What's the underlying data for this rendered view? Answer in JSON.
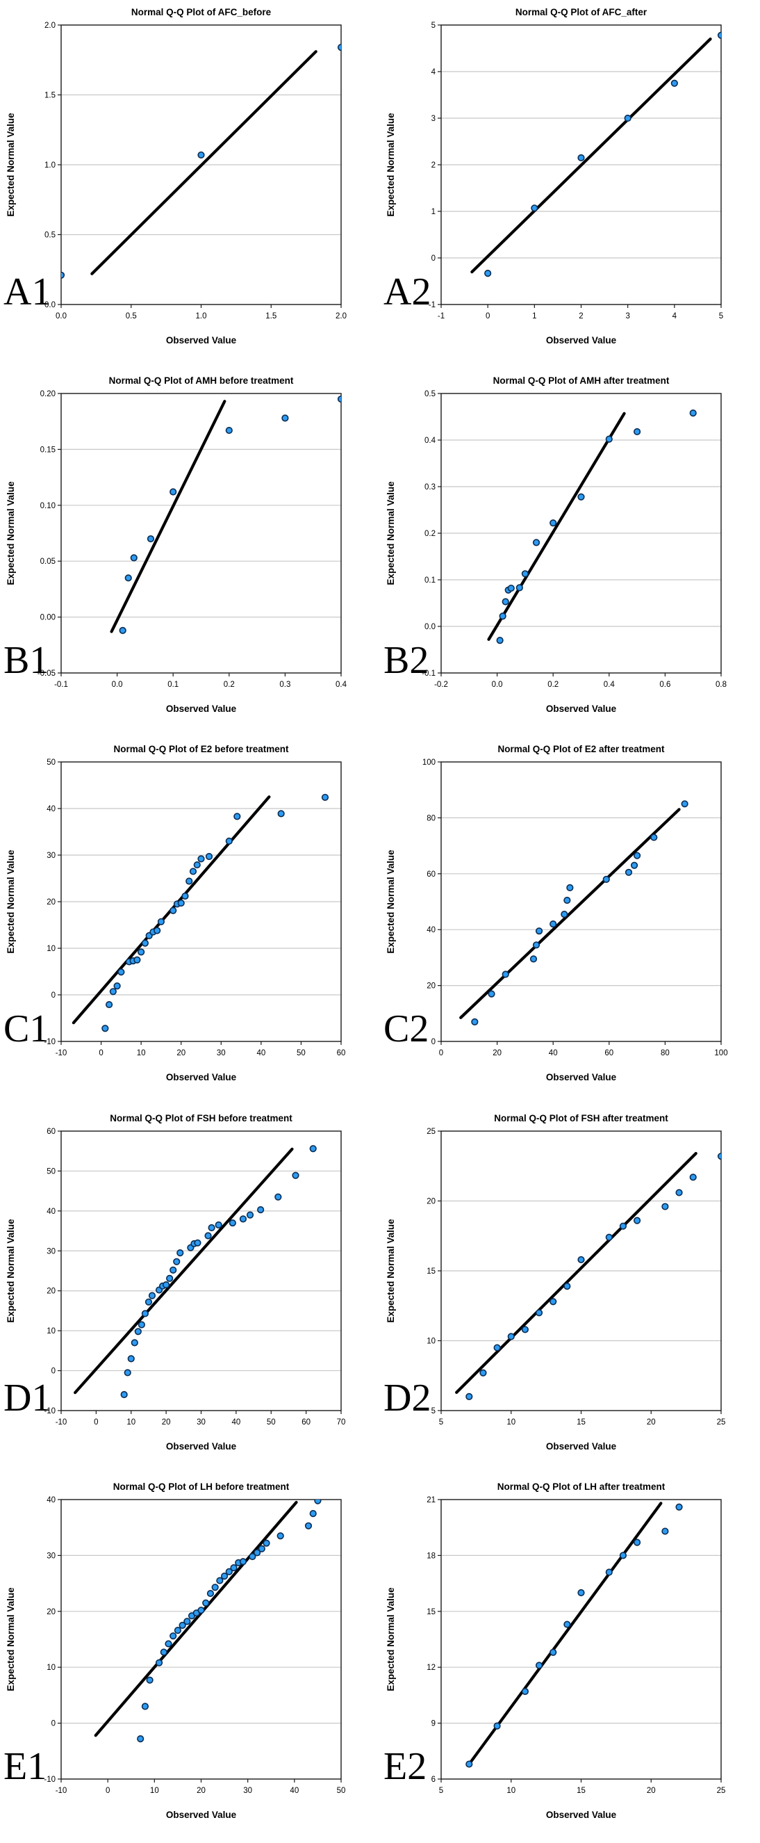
{
  "figure": {
    "panel_labels": [
      "A1",
      "A2",
      "B1",
      "B2",
      "C1",
      "C2",
      "D1",
      "D2",
      "E1",
      "E2"
    ],
    "x_axis_title": "Observed Value",
    "y_axis_title": "Expected Normal Value"
  },
  "colors": {
    "point_fill": "#2D9BF2",
    "point_stroke": "#0A2C52",
    "fit_line": "#000000",
    "gridline": "#C8C8C8",
    "frame": "#1A1A1A",
    "text": "#000000",
    "background": "#FFFFFF"
  },
  "chart_data": [
    {
      "type": "scatter",
      "panel_label": "A1",
      "title": "Normal Q-Q Plot of AFC_before",
      "xlabel": "Observed Value",
      "ylabel": "Expected Normal Value",
      "xlim": [
        0.0,
        2.0
      ],
      "ylim": [
        0.0,
        2.0
      ],
      "xticks": [
        0,
        0.5,
        1,
        1.5,
        2
      ],
      "xtick_labels": [
        "0.0",
        "0.5",
        "1.0",
        "1.5",
        "2.0"
      ],
      "yticks": [
        0,
        0.5,
        1,
        1.5,
        2
      ],
      "ytick_labels": [
        "0.0",
        "0.5",
        "1.0",
        "1.5",
        "2.0"
      ],
      "grid": "horizontal",
      "legend": "none",
      "fit_line": {
        "x": [
          0.22,
          1.82
        ],
        "y": [
          0.22,
          1.81
        ]
      },
      "points": [
        [
          0,
          0.21
        ],
        [
          1,
          1.07
        ],
        [
          2,
          1.84
        ]
      ]
    },
    {
      "type": "scatter",
      "panel_label": "A2",
      "title": "Normal Q-Q Plot of AFC_after",
      "xlabel": "Observed Value",
      "ylabel": "Expected Normal Value",
      "xlim": [
        -1,
        5
      ],
      "ylim": [
        -1,
        5
      ],
      "xticks": [
        -1,
        0,
        1,
        2,
        3,
        4,
        5
      ],
      "xtick_labels": [
        "-1",
        "0",
        "1",
        "2",
        "3",
        "4",
        "5"
      ],
      "yticks": [
        -1,
        0,
        1,
        2,
        3,
        4,
        5
      ],
      "ytick_labels": [
        "-1",
        "0",
        "1",
        "2",
        "3",
        "4",
        "5"
      ],
      "grid": "horizontal",
      "legend": "none",
      "fit_line": {
        "x": [
          -0.34,
          4.77
        ],
        "y": [
          -0.3,
          4.7
        ]
      },
      "points": [
        [
          0,
          -0.33
        ],
        [
          1,
          1.07
        ],
        [
          2,
          2.15
        ],
        [
          3,
          3.0
        ],
        [
          4,
          3.75
        ],
        [
          5,
          4.78
        ]
      ]
    },
    {
      "type": "scatter",
      "panel_label": "B1",
      "title": "Normal Q-Q Plot of AMH before treatment",
      "xlabel": "Observed Value",
      "ylabel": "Expected Normal Value",
      "xlim": [
        -0.1,
        0.4
      ],
      "ylim": [
        -0.05,
        0.2
      ],
      "xticks": [
        -0.1,
        0.0,
        0.1,
        0.2,
        0.3,
        0.4
      ],
      "xtick_labels": [
        "-0.1",
        "0.0",
        "0.1",
        "0.2",
        "0.3",
        "0.4"
      ],
      "yticks": [
        -0.05,
        0.0,
        0.05,
        0.1,
        0.15,
        0.2
      ],
      "ytick_labels": [
        "-0.05",
        "0.00",
        "0.05",
        "0.10",
        "0.15",
        "0.20"
      ],
      "grid": "horizontal",
      "legend": "none",
      "fit_line": {
        "x": [
          -0.01,
          0.192
        ],
        "y": [
          -0.013,
          0.193
        ]
      },
      "points": [
        [
          0.01,
          -0.012
        ],
        [
          0.02,
          0.035
        ],
        [
          0.03,
          0.053
        ],
        [
          0.06,
          0.07
        ],
        [
          0.1,
          0.112
        ],
        [
          0.2,
          0.167
        ],
        [
          0.3,
          0.178
        ],
        [
          0.4,
          0.195
        ]
      ]
    },
    {
      "type": "scatter",
      "panel_label": "B2",
      "title": "Normal Q-Q Plot of AMH after treatment",
      "xlabel": "Observed Value",
      "ylabel": "Expected Normal Value",
      "xlim": [
        -0.2,
        0.8
      ],
      "ylim": [
        -0.1,
        0.5
      ],
      "xticks": [
        -0.2,
        0.0,
        0.2,
        0.4,
        0.6,
        0.8
      ],
      "xtick_labels": [
        "-0.2",
        "0.0",
        "0.2",
        "0.4",
        "0.6",
        "0.8"
      ],
      "yticks": [
        -0.1,
        0.0,
        0.1,
        0.2,
        0.3,
        0.4,
        0.5
      ],
      "ytick_labels": [
        "-0.1",
        "0.0",
        "0.1",
        "0.2",
        "0.3",
        "0.4",
        "0.5"
      ],
      "grid": "horizontal",
      "legend": "none",
      "fit_line": {
        "x": [
          -0.03,
          0.454
        ],
        "y": [
          -0.028,
          0.457
        ]
      },
      "points": [
        [
          0.01,
          -0.03
        ],
        [
          0.02,
          0.022
        ],
        [
          0.03,
          0.053
        ],
        [
          0.04,
          0.078
        ],
        [
          0.05,
          0.082
        ],
        [
          0.08,
          0.083
        ],
        [
          0.1,
          0.113
        ],
        [
          0.14,
          0.18
        ],
        [
          0.2,
          0.222
        ],
        [
          0.3,
          0.278
        ],
        [
          0.4,
          0.402
        ],
        [
          0.5,
          0.418
        ],
        [
          0.7,
          0.458
        ]
      ]
    },
    {
      "type": "scatter",
      "panel_label": "C1",
      "title": "Normal Q-Q Plot of E2 before treatment",
      "xlabel": "Observed Value",
      "ylabel": "Expected Normal Value",
      "xlim": [
        -10,
        60
      ],
      "ylim": [
        -10,
        50
      ],
      "xticks": [
        -10,
        0,
        10,
        20,
        30,
        40,
        50,
        60
      ],
      "xtick_labels": [
        "-10",
        "0",
        "10",
        "20",
        "30",
        "40",
        "50",
        "60"
      ],
      "yticks": [
        -10,
        0,
        10,
        20,
        30,
        40,
        50
      ],
      "ytick_labels": [
        "-10",
        "0",
        "10",
        "20",
        "30",
        "40",
        "50"
      ],
      "grid": "horizontal",
      "legend": "none",
      "fit_line": {
        "x": [
          -6.9,
          42.0
        ],
        "y": [
          -6.0,
          42.5
        ]
      },
      "points": [
        [
          1,
          -7.2
        ],
        [
          2,
          -2.1
        ],
        [
          3,
          0.7
        ],
        [
          4,
          1.9
        ],
        [
          5,
          4.9
        ],
        [
          7,
          7.1
        ],
        [
          8,
          7.3
        ],
        [
          9,
          7.5
        ],
        [
          10,
          9.2
        ],
        [
          11,
          11.1
        ],
        [
          12,
          12.7
        ],
        [
          13,
          13.5
        ],
        [
          14,
          13.8
        ],
        [
          15,
          15.7
        ],
        [
          18,
          18.1
        ],
        [
          19,
          19.5
        ],
        [
          20,
          19.7
        ],
        [
          21,
          21.2
        ],
        [
          22,
          24.4
        ],
        [
          23,
          26.5
        ],
        [
          24,
          27.9
        ],
        [
          25,
          29.2
        ],
        [
          27,
          29.7
        ],
        [
          32,
          33.0
        ],
        [
          34,
          38.3
        ],
        [
          45,
          38.9
        ],
        [
          56,
          42.4
        ]
      ]
    },
    {
      "type": "scatter",
      "panel_label": "C2",
      "title": "Normal Q-Q Plot of E2 after treatment",
      "xlabel": "Observed Value",
      "ylabel": "Expected Normal Value",
      "xlim": [
        0,
        100
      ],
      "ylim": [
        0,
        100
      ],
      "xticks": [
        0,
        20,
        40,
        60,
        80,
        100
      ],
      "xtick_labels": [
        "0",
        "20",
        "40",
        "60",
        "80",
        "100"
      ],
      "yticks": [
        0,
        20,
        40,
        60,
        80,
        100
      ],
      "ytick_labels": [
        "0",
        "20",
        "40",
        "60",
        "80",
        "100"
      ],
      "grid": "horizontal",
      "legend": "none",
      "fit_line": {
        "x": [
          7.0,
          85.0
        ],
        "y": [
          8.5,
          83.0
        ]
      },
      "points": [
        [
          12,
          7
        ],
        [
          18,
          17
        ],
        [
          23,
          24
        ],
        [
          33,
          29.5
        ],
        [
          34,
          34.5
        ],
        [
          35,
          39.5
        ],
        [
          40,
          42
        ],
        [
          44,
          45.5
        ],
        [
          45,
          50.5
        ],
        [
          46,
          55
        ],
        [
          59,
          58
        ],
        [
          67,
          60.5
        ],
        [
          69,
          63
        ],
        [
          70,
          66.5
        ],
        [
          76,
          73
        ],
        [
          87,
          85
        ]
      ]
    },
    {
      "type": "scatter",
      "panel_label": "D1",
      "title": "Normal Q-Q Plot of FSH before treatment",
      "xlabel": "Observed Value",
      "ylabel": "Expected Normal Value",
      "xlim": [
        -10,
        70
      ],
      "ylim": [
        -10,
        60
      ],
      "xticks": [
        -10,
        0,
        10,
        20,
        30,
        40,
        50,
        60,
        70
      ],
      "xtick_labels": [
        "-10",
        "0",
        "10",
        "20",
        "30",
        "40",
        "50",
        "60",
        "70"
      ],
      "yticks": [
        -10,
        0,
        10,
        20,
        30,
        40,
        50,
        60
      ],
      "ytick_labels": [
        "-10",
        "0",
        "10",
        "20",
        "30",
        "40",
        "50",
        "60"
      ],
      "grid": "horizontal",
      "legend": "none",
      "fit_line": {
        "x": [
          -6.0,
          56.0
        ],
        "y": [
          -5.5,
          55.5
        ]
      },
      "points": [
        [
          8,
          -6
        ],
        [
          9,
          -0.5
        ],
        [
          10,
          3
        ],
        [
          11,
          7
        ],
        [
          12,
          9.8
        ],
        [
          13,
          11.5
        ],
        [
          14,
          14.3
        ],
        [
          15,
          17.2
        ],
        [
          16,
          18.8
        ],
        [
          18,
          20.2
        ],
        [
          19,
          21.2
        ],
        [
          20,
          21.5
        ],
        [
          21,
          23.1
        ],
        [
          22,
          25.2
        ],
        [
          23,
          27.3
        ],
        [
          24,
          29.5
        ],
        [
          27,
          30.8
        ],
        [
          28,
          31.8
        ],
        [
          29,
          32.0
        ],
        [
          32,
          33.8
        ],
        [
          33,
          35.8
        ],
        [
          35,
          36.5
        ],
        [
          39,
          37.0
        ],
        [
          42,
          38.0
        ],
        [
          44,
          39.0
        ],
        [
          47,
          40.3
        ],
        [
          52,
          43.5
        ],
        [
          57,
          48.9
        ],
        [
          62,
          55.6
        ]
      ]
    },
    {
      "type": "scatter",
      "panel_label": "D2",
      "title": "Normal Q-Q Plot of FSH after treatment",
      "xlabel": "Observed Value",
      "ylabel": "Expected Normal Value",
      "xlim": [
        5,
        25
      ],
      "ylim": [
        5,
        25
      ],
      "xticks": [
        5,
        10,
        15,
        20,
        25
      ],
      "xtick_labels": [
        "5",
        "10",
        "15",
        "20",
        "25"
      ],
      "yticks": [
        5,
        10,
        15,
        20,
        25
      ],
      "ytick_labels": [
        "5",
        "10",
        "15",
        "20",
        "25"
      ],
      "grid": "horizontal",
      "legend": "none",
      "fit_line": {
        "x": [
          6.1,
          23.2
        ],
        "y": [
          6.3,
          23.4
        ]
      },
      "points": [
        [
          7,
          6
        ],
        [
          8,
          7.7
        ],
        [
          9,
          9.5
        ],
        [
          10,
          10.3
        ],
        [
          11,
          10.8
        ],
        [
          12,
          12.0
        ],
        [
          13,
          12.8
        ],
        [
          14,
          13.9
        ],
        [
          15,
          15.8
        ],
        [
          17,
          17.4
        ],
        [
          18,
          18.2
        ],
        [
          19,
          18.6
        ],
        [
          21,
          19.6
        ],
        [
          22,
          20.6
        ],
        [
          23,
          21.7
        ],
        [
          25,
          23.2
        ]
      ]
    },
    {
      "type": "scatter",
      "panel_label": "E1",
      "title": "Normal Q-Q Plot of LH before treatment",
      "xlabel": "Observed Value",
      "ylabel": "Expected Normal Value",
      "xlim": [
        -10,
        50
      ],
      "ylim": [
        -10,
        40
      ],
      "xticks": [
        -10,
        0,
        10,
        20,
        30,
        40,
        50
      ],
      "xtick_labels": [
        "-10",
        "0",
        "10",
        "20",
        "30",
        "40",
        "50"
      ],
      "yticks": [
        -10,
        0,
        10,
        20,
        30,
        40
      ],
      "ytick_labels": [
        "-10",
        "0",
        "10",
        "20",
        "30",
        "40"
      ],
      "grid": "horizontal",
      "legend": "none",
      "fit_line": {
        "x": [
          -2.6,
          40.4
        ],
        "y": [
          -2.2,
          39.5
        ]
      },
      "points": [
        [
          7,
          -2.8
        ],
        [
          8,
          3.0
        ],
        [
          9,
          7.7
        ],
        [
          11,
          10.8
        ],
        [
          12,
          12.7
        ],
        [
          13,
          14.2
        ],
        [
          14,
          15.6
        ],
        [
          15,
          16.6
        ],
        [
          16,
          17.5
        ],
        [
          17,
          18.2
        ],
        [
          18,
          19.2
        ],
        [
          19,
          19.7
        ],
        [
          20,
          20.2
        ],
        [
          21,
          21.5
        ],
        [
          22,
          23.2
        ],
        [
          23,
          24.3
        ],
        [
          24,
          25.5
        ],
        [
          25,
          26.3
        ],
        [
          26,
          27.1
        ],
        [
          27,
          27.8
        ],
        [
          28,
          28.7
        ],
        [
          29,
          28.9
        ],
        [
          31,
          29.8
        ],
        [
          32,
          30.5
        ],
        [
          33,
          31.2
        ],
        [
          34,
          32.2
        ],
        [
          37,
          33.5
        ],
        [
          43,
          35.3
        ],
        [
          44,
          37.5
        ],
        [
          45,
          39.8
        ]
      ]
    },
    {
      "type": "scatter",
      "panel_label": "E2",
      "title": "Normal Q-Q Plot of LH after treatment",
      "xlabel": "Observed Value",
      "ylabel": "Expected Normal Value",
      "xlim": [
        5,
        25
      ],
      "ylim": [
        6,
        21
      ],
      "xticks": [
        5,
        10,
        15,
        20,
        25
      ],
      "xtick_labels": [
        "5",
        "10",
        "15",
        "20",
        "25"
      ],
      "yticks": [
        6,
        9,
        12,
        15,
        18,
        21
      ],
      "ytick_labels": [
        "6",
        "9",
        "12",
        "15",
        "18",
        "21"
      ],
      "grid": "horizontal",
      "legend": "none",
      "fit_line": {
        "x": [
          7.0,
          20.7
        ],
        "y": [
          6.8,
          20.8
        ]
      },
      "points": [
        [
          7,
          6.8
        ],
        [
          9,
          8.85
        ],
        [
          11,
          10.7
        ],
        [
          12,
          12.1
        ],
        [
          13,
          12.8
        ],
        [
          14,
          14.3
        ],
        [
          15,
          16.0
        ],
        [
          17,
          17.1
        ],
        [
          18,
          18.0
        ],
        [
          19,
          18.7
        ],
        [
          21,
          19.3
        ],
        [
          22,
          20.6
        ]
      ]
    }
  ]
}
